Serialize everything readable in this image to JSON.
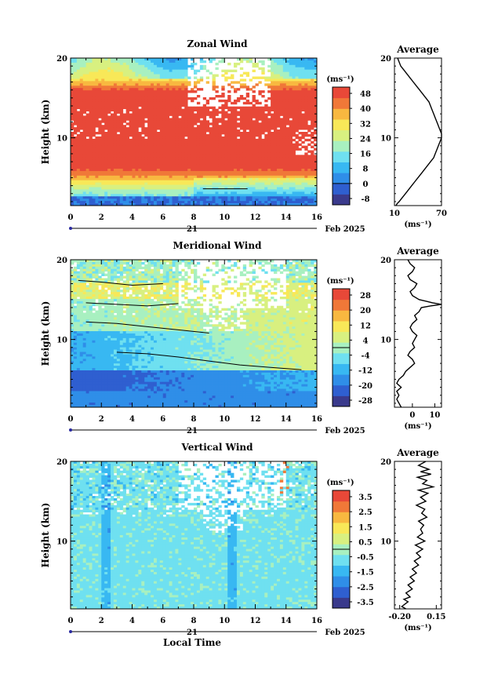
{
  "x_axis": {
    "ticks": [
      "0",
      "2",
      "4",
      "6",
      "8",
      "10",
      "12",
      "14",
      "16"
    ],
    "day_label": "21",
    "date_label": "Feb 2025",
    "title": "Local Time",
    "range": [
      0,
      16
    ]
  },
  "y_axis": {
    "label": "Height (km)",
    "ticks": [
      "10",
      "20"
    ],
    "range": [
      1.5,
      20
    ]
  },
  "unit_label": "(ms⁻¹)",
  "average_title": "Average",
  "colors": {
    "palette": [
      "#3a3a8c",
      "#2f5fd0",
      "#2f8ee8",
      "#38b8f2",
      "#6fe0f0",
      "#a8f0c0",
      "#d8f080",
      "#f8e858",
      "#f8b840",
      "#f07838",
      "#e84838"
    ]
  },
  "chart_data": [
    {
      "type": "heatmap",
      "title": "Zonal Wind",
      "ylabel": "Height (km)",
      "xlabel": "",
      "colorbar": {
        "labels": [
          "48",
          "40",
          "32",
          "24",
          "16",
          "8",
          "0",
          "-8"
        ],
        "levels": [
          -8,
          0,
          8,
          16,
          24,
          32,
          40,
          48
        ]
      },
      "profile_by_height": [
        {
          "h": 20,
          "u": 14
        },
        {
          "h": 19,
          "u": 18
        },
        {
          "h": 18,
          "u": 26
        },
        {
          "h": 17,
          "u": 34
        },
        {
          "h": 16,
          "u": 44
        },
        {
          "h": 15,
          "u": 52
        },
        {
          "h": 14,
          "u": 56
        },
        {
          "h": 13,
          "u": 60
        },
        {
          "h": 12,
          "u": 64
        },
        {
          "h": 11,
          "u": 68
        },
        {
          "h": 10,
          "u": 70
        },
        {
          "h": 9,
          "u": 66
        },
        {
          "h": 8,
          "u": 60
        },
        {
          "h": 7,
          "u": 52
        },
        {
          "h": 6,
          "u": 44
        },
        {
          "h": 5,
          "u": 36
        },
        {
          "h": 4,
          "u": 26
        },
        {
          "h": 3,
          "u": 18
        },
        {
          "h": 2,
          "u": 12
        }
      ],
      "average": {
        "title": "Average",
        "xticks": [
          "10",
          "70"
        ],
        "xlim": [
          10,
          70
        ],
        "xlabel": "(ms⁻¹)",
        "yticks": [
          "10",
          "20"
        ],
        "x": [
          14,
          16,
          18,
          22,
          26,
          30,
          34,
          38,
          42,
          46,
          50,
          54,
          56,
          58,
          60,
          62,
          64,
          66,
          68,
          70,
          70,
          68,
          66,
          64,
          62,
          60,
          56,
          52,
          48,
          44,
          40,
          36,
          32,
          28,
          24,
          20,
          16,
          13,
          12
        ],
        "y": [
          20,
          19.5,
          19,
          18.5,
          18,
          17.5,
          17,
          16.5,
          16,
          15.5,
          15,
          14.5,
          14,
          13.5,
          13,
          12.5,
          12,
          11.5,
          11,
          10.5,
          10,
          9.5,
          9,
          8.5,
          8,
          7.5,
          7,
          6.5,
          6,
          5.5,
          5,
          4.5,
          4,
          3.5,
          3,
          2.5,
          2,
          1.7,
          1.5
        ]
      }
    },
    {
      "type": "heatmap",
      "title": "Meridional Wind",
      "ylabel": "Height (km)",
      "xlabel": "",
      "colorbar": {
        "labels": [
          "28",
          "20",
          "12",
          "4",
          "-4",
          "-12",
          "-20",
          "-28"
        ],
        "levels": [
          -28,
          -20,
          -12,
          -4,
          4,
          12,
          20,
          28
        ]
      },
      "average": {
        "title": "Average",
        "xticks": [
          "0",
          "10"
        ],
        "xlim": [
          -8,
          13
        ],
        "xlabel": "(ms⁻¹)",
        "yticks": [
          "10",
          "20"
        ],
        "x": [
          -2,
          -1,
          1,
          0,
          -2,
          -1,
          2,
          1,
          -1,
          0,
          3,
          6,
          9,
          13,
          8,
          4,
          3,
          1,
          2,
          0,
          -1,
          0,
          2,
          1,
          0,
          1,
          -1,
          -2,
          0,
          1,
          -1,
          -3,
          -4,
          -6,
          -7,
          -5,
          -7,
          -6,
          -7,
          -5
        ],
        "y": [
          20,
          19.5,
          19,
          18.5,
          18,
          17.5,
          17,
          16.5,
          16,
          15.5,
          15,
          14.8,
          14.6,
          14.4,
          14.2,
          14,
          13.5,
          13,
          12.5,
          12,
          11.5,
          11,
          10.5,
          10,
          9.5,
          9,
          8.5,
          8,
          7.5,
          7,
          6.5,
          6,
          5.5,
          5,
          4.5,
          4,
          3.5,
          3,
          2.5,
          1.5
        ]
      }
    },
    {
      "type": "heatmap",
      "title": "Vertical Wind",
      "ylabel": "Height (km)",
      "xlabel": "Local Time",
      "colorbar": {
        "labels": [
          "3.5",
          "2.5",
          "1.5",
          "0.5",
          "-0.5",
          "-1.5",
          "-2.5",
          "-3.5"
        ],
        "levels": [
          -3.5,
          -2.5,
          -1.5,
          -0.5,
          0.5,
          1.5,
          2.5,
          3.5
        ]
      },
      "average": {
        "title": "Average",
        "xticks": [
          "-0.20",
          "0.15"
        ],
        "xlim": [
          -0.25,
          0.2
        ],
        "xlabel": "(ms⁻¹)",
        "yticks": [
          "10",
          "20"
        ],
        "x": [
          0.05,
          -0.02,
          0.08,
          0.0,
          0.1,
          -0.03,
          0.06,
          0.02,
          0.12,
          -0.02,
          0.07,
          0.0,
          0.05,
          -0.04,
          0.04,
          0.01,
          0.06,
          -0.02,
          0.03,
          0.0,
          0.02,
          -0.03,
          0.04,
          -0.05,
          0.02,
          -0.04,
          0.0,
          -0.06,
          -0.02,
          -0.08,
          -0.04,
          -0.1,
          -0.06,
          -0.12,
          -0.08,
          -0.14,
          -0.1,
          -0.16,
          -0.12,
          -0.15,
          -0.18,
          -0.14
        ],
        "y": [
          20,
          19.5,
          19,
          18.7,
          18.4,
          18,
          17.6,
          17.2,
          16.8,
          16.4,
          16,
          15.5,
          15,
          14.5,
          14,
          13.5,
          13,
          12.5,
          12,
          11.5,
          11,
          10.5,
          10,
          9.5,
          9,
          8.5,
          8,
          7.5,
          7,
          6.5,
          6,
          5.5,
          5,
          4.5,
          4,
          3.5,
          3,
          2.7,
          2.4,
          2.1,
          1.8,
          1.5
        ]
      }
    }
  ]
}
